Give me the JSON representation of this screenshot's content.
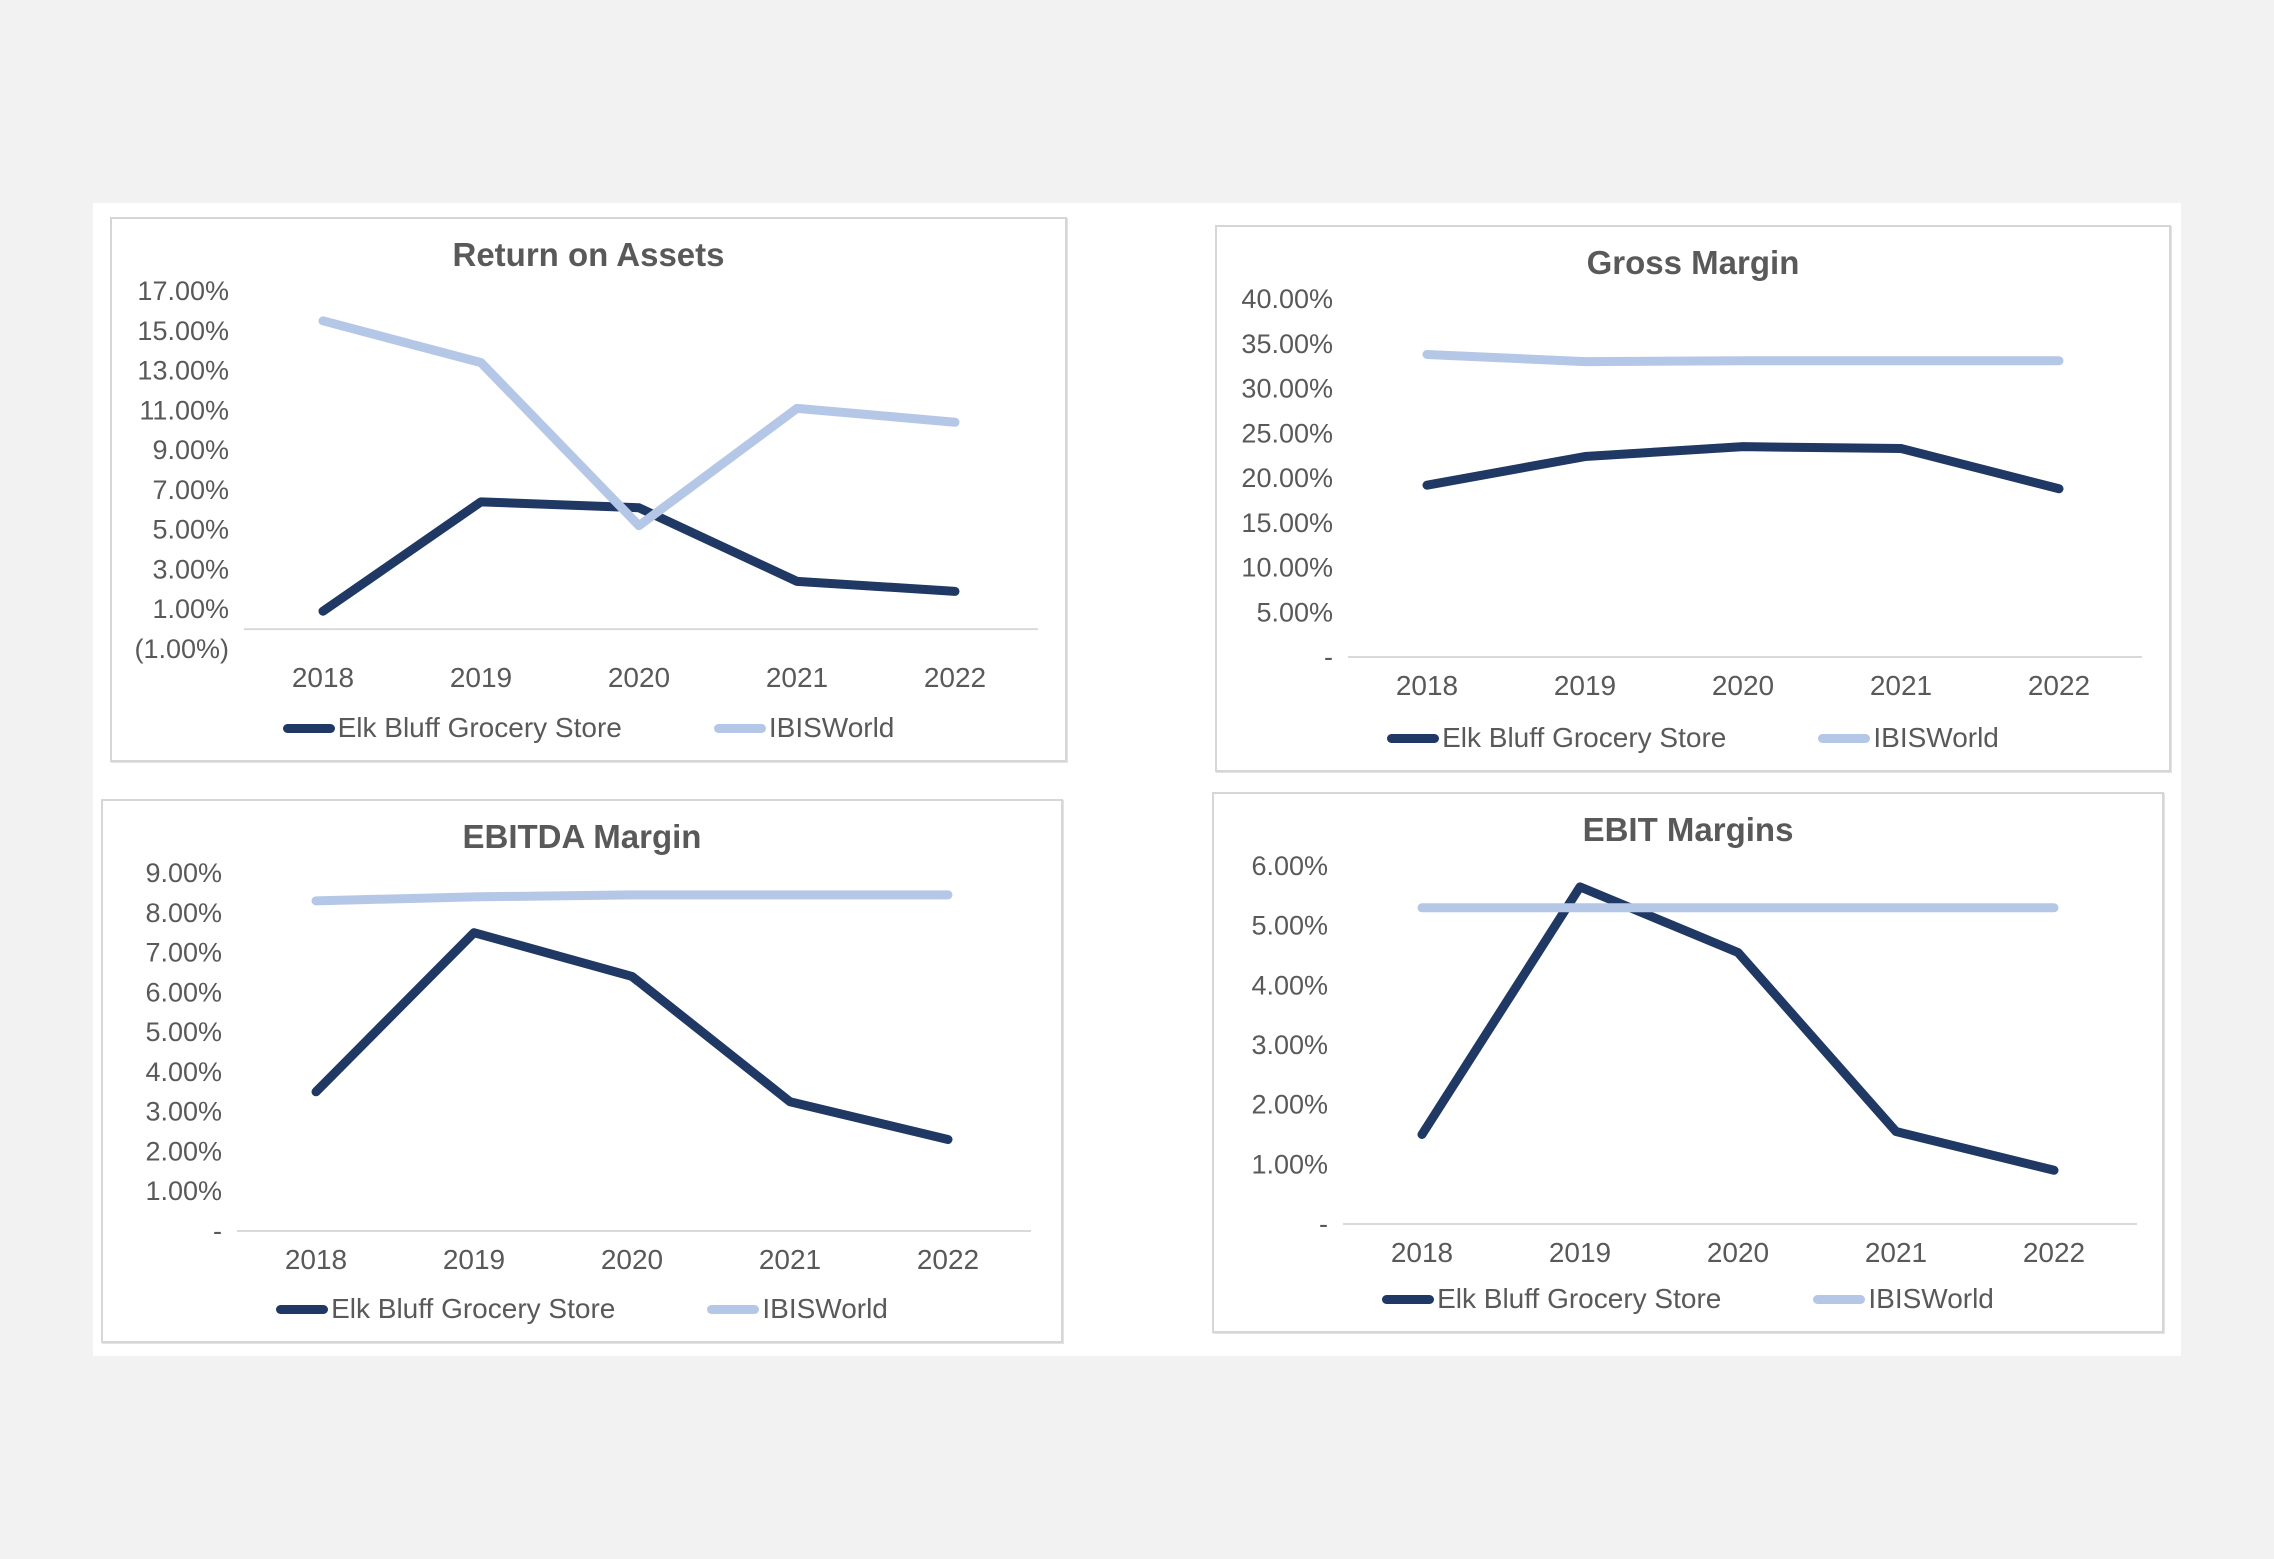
{
  "theme": {
    "page_background": "#F2F2F2",
    "panel_background": "#FFFFFF",
    "card_border": "#D6D6D6",
    "text_color": "#595959",
    "axis_color": "#D9D9D9",
    "elk_bluff_color": "#1F3864",
    "ibisworld_color": "#B4C7E7"
  },
  "chart_data": [
    {
      "id": "return-on-assets",
      "type": "line",
      "title": "Return on Assets",
      "categories": [
        "2018",
        "2019",
        "2020",
        "2021",
        "2022"
      ],
      "series": [
        {
          "name": "Elk Bluff Grocery Store",
          "color": "#1F3864",
          "values": [
            0.9,
            6.4,
            6.1,
            2.4,
            1.9
          ]
        },
        {
          "name": "IBISWorld",
          "color": "#B4C7E7",
          "values": [
            15.5,
            13.4,
            5.2,
            11.1,
            10.4
          ]
        }
      ],
      "ylim": [
        -1,
        17
      ],
      "yticks": [
        {
          "value": 17,
          "label": "17.00%"
        },
        {
          "value": 15,
          "label": "15.00%"
        },
        {
          "value": 13,
          "label": "13.00%"
        },
        {
          "value": 11,
          "label": "11.00%"
        },
        {
          "value": 9,
          "label": "9.00%"
        },
        {
          "value": 7,
          "label": "7.00%"
        },
        {
          "value": 5,
          "label": "5.00%"
        },
        {
          "value": 3,
          "label": "3.00%"
        },
        {
          "value": 1,
          "label": "1.00%"
        },
        {
          "value": -1,
          "label": "(1.00%)"
        }
      ],
      "grid": false,
      "legend_position": "bottom"
    },
    {
      "id": "gross-margin",
      "type": "line",
      "title": "Gross Margin",
      "categories": [
        "2018",
        "2019",
        "2020",
        "2021",
        "2022"
      ],
      "series": [
        {
          "name": "Elk Bluff Grocery Store",
          "color": "#1F3864",
          "values": [
            19.2,
            22.4,
            23.5,
            23.3,
            18.8
          ]
        },
        {
          "name": "IBISWorld",
          "color": "#B4C7E7",
          "values": [
            33.8,
            33.0,
            33.1,
            33.1,
            33.1
          ]
        }
      ],
      "ylim": [
        0,
        40
      ],
      "yticks": [
        {
          "value": 40,
          "label": "40.00%"
        },
        {
          "value": 35,
          "label": "35.00%"
        },
        {
          "value": 30,
          "label": "30.00%"
        },
        {
          "value": 25,
          "label": "25.00%"
        },
        {
          "value": 20,
          "label": "20.00%"
        },
        {
          "value": 15,
          "label": "15.00%"
        },
        {
          "value": 10,
          "label": "10.00%"
        },
        {
          "value": 5,
          "label": "5.00%"
        },
        {
          "value": 0,
          "label": "-"
        }
      ],
      "grid": false,
      "legend_position": "bottom"
    },
    {
      "id": "ebitda-margin",
      "type": "line",
      "title": "EBITDA Margin",
      "categories": [
        "2018",
        "2019",
        "2020",
        "2021",
        "2022"
      ],
      "series": [
        {
          "name": "Elk Bluff Grocery Store",
          "color": "#1F3864",
          "values": [
            3.5,
            7.5,
            6.4,
            3.25,
            2.3
          ]
        },
        {
          "name": "IBISWorld",
          "color": "#B4C7E7",
          "values": [
            8.3,
            8.4,
            8.45,
            8.45,
            8.45
          ]
        }
      ],
      "ylim": [
        0,
        9
      ],
      "yticks": [
        {
          "value": 9,
          "label": "9.00%"
        },
        {
          "value": 8,
          "label": "8.00%"
        },
        {
          "value": 7,
          "label": "7.00%"
        },
        {
          "value": 6,
          "label": "6.00%"
        },
        {
          "value": 5,
          "label": "5.00%"
        },
        {
          "value": 4,
          "label": "4.00%"
        },
        {
          "value": 3,
          "label": "3.00%"
        },
        {
          "value": 2,
          "label": "2.00%"
        },
        {
          "value": 1,
          "label": "1.00%"
        },
        {
          "value": 0,
          "label": "-"
        }
      ],
      "grid": false,
      "legend_position": "bottom"
    },
    {
      "id": "ebit-margins",
      "type": "line",
      "title": "EBIT Margins",
      "categories": [
        "2018",
        "2019",
        "2020",
        "2021",
        "2022"
      ],
      "series": [
        {
          "name": "Elk Bluff Grocery Store",
          "color": "#1F3864",
          "values": [
            1.5,
            5.65,
            4.55,
            1.55,
            0.9
          ]
        },
        {
          "name": "IBISWorld",
          "color": "#B4C7E7",
          "values": [
            5.3,
            5.3,
            5.3,
            5.3,
            5.3
          ]
        }
      ],
      "ylim": [
        0,
        6
      ],
      "yticks": [
        {
          "value": 6,
          "label": "6.00%"
        },
        {
          "value": 5,
          "label": "5.00%"
        },
        {
          "value": 4,
          "label": "4.00%"
        },
        {
          "value": 3,
          "label": "3.00%"
        },
        {
          "value": 2,
          "label": "2.00%"
        },
        {
          "value": 1,
          "label": "1.00%"
        },
        {
          "value": 0,
          "label": "-"
        }
      ],
      "grid": false,
      "legend_position": "bottom"
    }
  ]
}
